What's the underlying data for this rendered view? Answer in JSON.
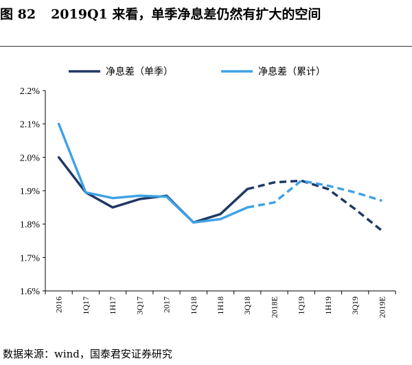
{
  "header": {
    "figure_number": "图 82",
    "title": "2019Q1 来看，单季净息差仍然有扩大的空间"
  },
  "footer": {
    "source": "数据来源：wind，国泰君安证券研究"
  },
  "chart_data": {
    "type": "line",
    "categories": [
      "2016",
      "1Q17",
      "1H17",
      "3Q17",
      "2017",
      "1Q18",
      "1H18",
      "3Q18",
      "2018E",
      "1Q19",
      "1H19",
      "3Q19",
      "2019E"
    ],
    "series": [
      {
        "name": "净息差（单季）",
        "color": "#1F3864",
        "values": [
          2.0,
          1.895,
          1.85,
          1.875,
          1.885,
          1.805,
          1.83,
          1.905,
          1.925,
          1.93,
          1.905,
          1.845,
          1.78
        ],
        "dashed_from_index": 7
      },
      {
        "name": "净息差（累计）",
        "color": "#3FA2E5",
        "values": [
          2.1,
          1.895,
          1.878,
          1.885,
          1.882,
          1.805,
          1.815,
          1.85,
          1.865,
          1.93,
          1.915,
          1.895,
          1.87
        ],
        "dashed_from_index": 7
      }
    ],
    "y_ticks": [
      "1.6%",
      "1.7%",
      "1.8%",
      "1.9%",
      "2.0%",
      "2.1%",
      "2.2%"
    ],
    "ylim": [
      1.6,
      2.2
    ],
    "grid": false,
    "legend_position": "top"
  }
}
